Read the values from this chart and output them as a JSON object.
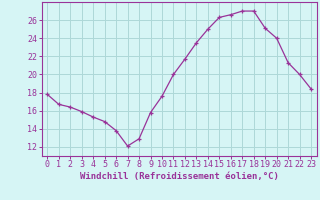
{
  "x": [
    0,
    1,
    2,
    3,
    4,
    5,
    6,
    7,
    8,
    9,
    10,
    11,
    12,
    13,
    14,
    15,
    16,
    17,
    18,
    19,
    20,
    21,
    22,
    23
  ],
  "y": [
    17.8,
    16.7,
    16.4,
    15.9,
    15.3,
    14.8,
    13.8,
    12.1,
    12.9,
    15.8,
    17.6,
    20.0,
    21.7,
    23.5,
    25.0,
    26.3,
    26.6,
    27.0,
    27.0,
    25.1,
    24.0,
    21.3,
    20.0,
    18.4
  ],
  "line_color": "#993399",
  "marker": "+",
  "bg_color": "#d6f5f5",
  "grid_color": "#add8d8",
  "axis_color": "#993399",
  "xlabel": "Windchill (Refroidissement éolien,°C)",
  "ylim": [
    11,
    28
  ],
  "xlim_min": -0.5,
  "xlim_max": 23.5,
  "yticks": [
    12,
    14,
    16,
    18,
    20,
    22,
    24,
    26
  ],
  "xticks": [
    0,
    1,
    2,
    3,
    4,
    5,
    6,
    7,
    8,
    9,
    10,
    11,
    12,
    13,
    14,
    15,
    16,
    17,
    18,
    19,
    20,
    21,
    22,
    23
  ],
  "xlabel_fontsize": 6.5,
  "tick_fontsize": 6.0
}
